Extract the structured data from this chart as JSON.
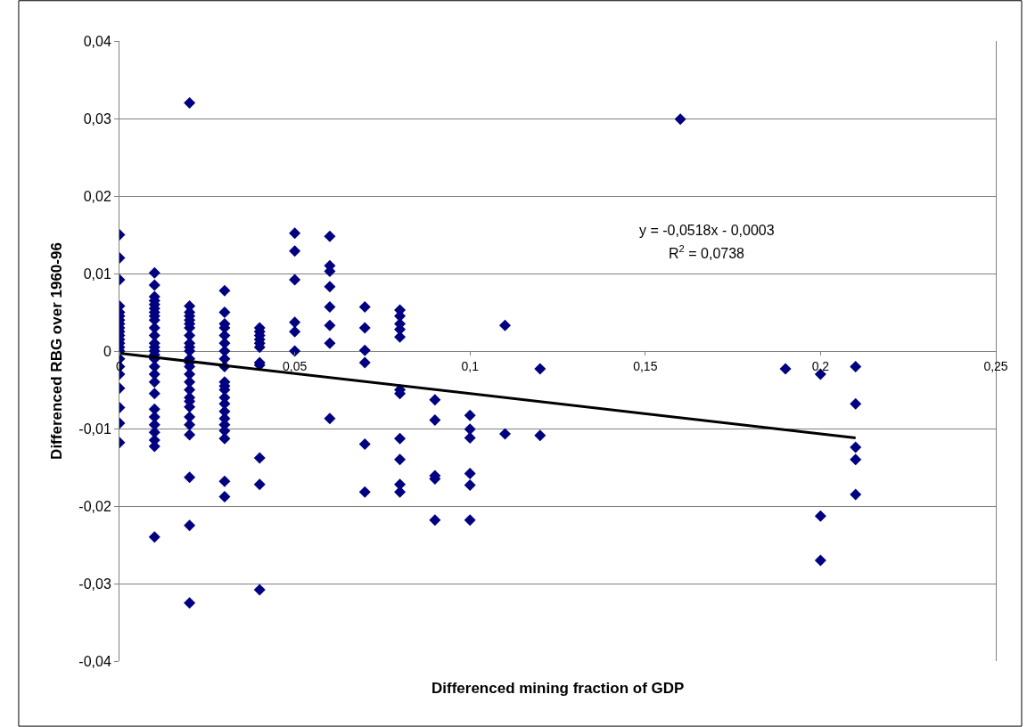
{
  "chart_data": {
    "type": "scatter",
    "xlabel": "Differenced mining fraction of GDP",
    "ylabel": "Differenced RBG over 1960-96",
    "xlim": [
      0,
      0.25
    ],
    "ylim": [
      -0.04,
      0.04
    ],
    "xticks": [
      {
        "value": 0,
        "label": "0"
      },
      {
        "value": 0.05,
        "label": "0,05"
      },
      {
        "value": 0.1,
        "label": "0,1"
      },
      {
        "value": 0.15,
        "label": "0,15"
      },
      {
        "value": 0.2,
        "label": "0,2"
      },
      {
        "value": 0.25,
        "label": "0,25"
      }
    ],
    "yticks": [
      {
        "value": -0.04,
        "label": "-0,04"
      },
      {
        "value": -0.03,
        "label": "-0,03"
      },
      {
        "value": -0.02,
        "label": "-0,02"
      },
      {
        "value": -0.01,
        "label": "-0,01"
      },
      {
        "value": 0,
        "label": "0"
      },
      {
        "value": 0.01,
        "label": "0,01"
      },
      {
        "value": 0.02,
        "label": "0,02"
      },
      {
        "value": 0.03,
        "label": "0,03"
      },
      {
        "value": 0.04,
        "label": "0,04"
      }
    ],
    "grid": "y",
    "marker": "diamond",
    "series": [
      {
        "color": "#000080",
        "x": [
          0,
          0,
          0,
          0,
          0,
          0,
          0,
          0,
          0,
          0,
          0,
          0,
          0,
          0,
          0,
          0,
          0,
          0,
          0,
          0,
          0,
          0,
          0.01,
          0.01,
          0.01,
          0.01,
          0.01,
          0.01,
          0.01,
          0.01,
          0.01,
          0.01,
          0.01,
          0.01,
          0.01,
          0.01,
          0.01,
          0.01,
          0.01,
          0.01,
          0.01,
          0.01,
          0.01,
          0.01,
          0.01,
          0.01,
          0.01,
          0.01,
          0.01,
          0.02,
          0.02,
          0.02,
          0.02,
          0.02,
          0.02,
          0.02,
          0.02,
          0.02,
          0.02,
          0.02,
          0.02,
          0.02,
          0.02,
          0.02,
          0.02,
          0.02,
          0.02,
          0.02,
          0.02,
          0.02,
          0.02,
          0.02,
          0.02,
          0.02,
          0.02,
          0.03,
          0.03,
          0.03,
          0.03,
          0.03,
          0.03,
          0.03,
          0.03,
          0.03,
          0.03,
          0.03,
          0.03,
          0.03,
          0.03,
          0.03,
          0.03,
          0.03,
          0.03,
          0.03,
          0.03,
          0.03,
          0.04,
          0.04,
          0.04,
          0.04,
          0.04,
          0.04,
          0.04,
          0.04,
          0.04,
          0.04,
          0.04,
          0.05,
          0.05,
          0.05,
          0.05,
          0.05,
          0.05,
          0.06,
          0.06,
          0.06,
          0.06,
          0.06,
          0.06,
          0.06,
          0.06,
          0.07,
          0.07,
          0.07,
          0.07,
          0.07,
          0.07,
          0.08,
          0.08,
          0.08,
          0.08,
          0.08,
          0.08,
          0.08,
          0.08,
          0.08,
          0.08,
          0.08,
          0.09,
          0.09,
          0.09,
          0.09,
          0.09,
          0.1,
          0.1,
          0.1,
          0.1,
          0.1,
          0.1,
          0.11,
          0.11,
          0.12,
          0.12,
          0.16,
          0.19,
          0.2,
          0.2,
          0.2,
          0.21,
          0.21,
          0.21,
          0.21,
          0.21
        ],
        "values": [
          0.015,
          0.012,
          0.0092,
          0.0058,
          0.005,
          0.0045,
          0.004,
          0.0035,
          0.003,
          0.0025,
          0.002,
          0.0015,
          0.001,
          0.0005,
          0,
          -0.001,
          -0.002,
          -0.003,
          -0.0048,
          -0.0073,
          -0.0093,
          -0.0118,
          0.0101,
          0.0085,
          0.007,
          0.0065,
          0.006,
          0.0055,
          0.005,
          0.0045,
          0.004,
          0.003,
          0.002,
          0.001,
          0.0005,
          0,
          -0.0005,
          -0.001,
          -0.002,
          -0.003,
          -0.004,
          -0.0055,
          -0.0075,
          -0.0085,
          -0.0095,
          -0.0105,
          -0.0115,
          -0.0123,
          -0.024,
          0.032,
          0.0058,
          0.005,
          0.0045,
          0.004,
          0.0035,
          0.003,
          0.002,
          0.001,
          0.0005,
          0,
          -0.001,
          -0.0015,
          -0.002,
          -0.003,
          -0.004,
          -0.005,
          -0.006,
          -0.0065,
          -0.0072,
          -0.0085,
          -0.0095,
          -0.0108,
          -0.0163,
          -0.0225,
          -0.0325,
          0.0078,
          0.005,
          0.0035,
          0.003,
          0.002,
          0.001,
          0,
          -0.001,
          -0.002,
          -0.004,
          -0.0045,
          -0.005,
          -0.006,
          -0.0068,
          -0.0078,
          -0.0087,
          -0.0095,
          -0.0103,
          -0.0113,
          -0.0168,
          -0.0188,
          0.003,
          0.0025,
          0.002,
          0.0015,
          0.001,
          0.0005,
          -0.0015,
          -0.0018,
          -0.0138,
          -0.0172,
          -0.0308,
          0.0152,
          0.0129,
          0.0092,
          0.0037,
          0.0025,
          0,
          0.0148,
          0.011,
          0.0103,
          0.0083,
          0.0057,
          0.0033,
          0.001,
          -0.0087,
          0.0057,
          0.003,
          0.0001,
          -0.0015,
          -0.012,
          -0.0182,
          0.0053,
          0.0045,
          0.0035,
          0.0028,
          0.0018,
          -0.005,
          -0.0055,
          -0.0113,
          -0.014,
          -0.0172,
          -0.0182,
          -0.0063,
          -0.0089,
          -0.0161,
          -0.0165,
          -0.0218,
          -0.0083,
          -0.0101,
          -0.0112,
          -0.0158,
          -0.0173,
          -0.0218,
          0.0033,
          -0.0107,
          -0.0023,
          -0.0109,
          0.0299,
          -0.0023,
          -0.003,
          -0.0213,
          -0.027,
          -0.002,
          -0.0068,
          -0.0124,
          -0.014,
          -0.0185
        ]
      },
      {
        "type": "line",
        "color": "#000000",
        "marker": "none",
        "x": [
          0,
          0.21
        ],
        "values": [
          -0.0003,
          -0.0112
        ]
      }
    ],
    "annotations": [
      "y = -0,0518x - 0,0003",
      "R$^{2}$ = 0,0738"
    ]
  }
}
